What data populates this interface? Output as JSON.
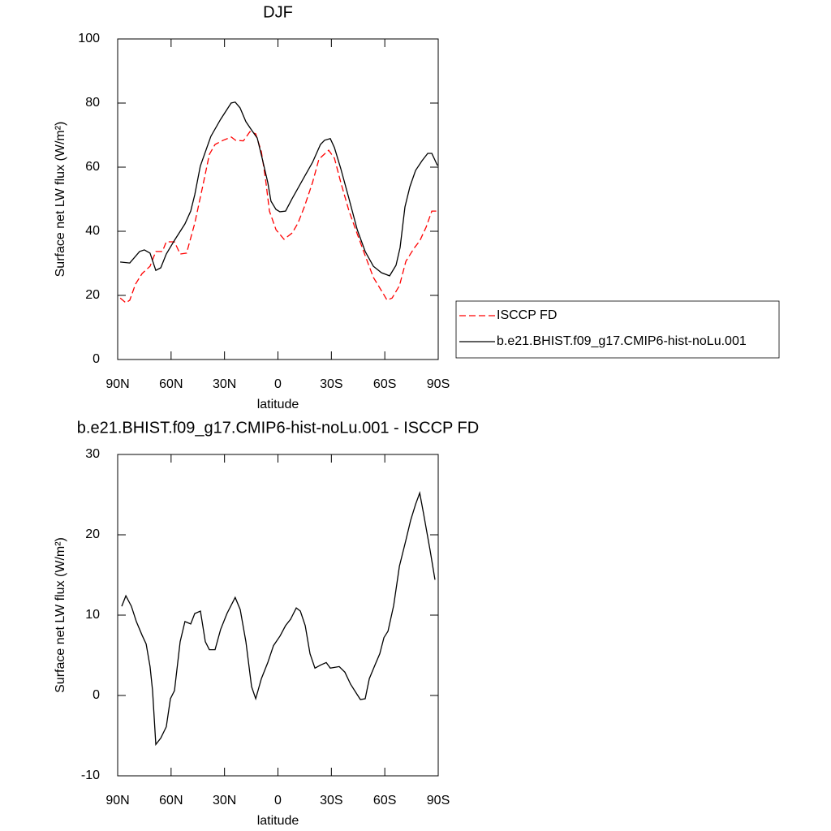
{
  "chart_data": [
    {
      "type": "line",
      "title": "DJF",
      "xlabel": "latitude",
      "ylabel": "Surface net LW flux (W/m²)",
      "xlim": [
        90,
        -90
      ],
      "xticks": [
        {
          "value": 90,
          "label": "90N"
        },
        {
          "value": 60,
          "label": "60N"
        },
        {
          "value": 30,
          "label": "30N"
        },
        0,
        {
          "value": -30,
          "label": "30S"
        },
        {
          "value": -60,
          "label": "60S"
        },
        {
          "value": -90,
          "label": "90S"
        }
      ],
      "ylim": [
        0,
        100
      ],
      "yticks": [
        0,
        20,
        40,
        60,
        80,
        100
      ],
      "series": [
        {
          "name": "ISCCP FD",
          "color": "#ff0000",
          "dashed": true,
          "x": [
            88.6,
            85.4,
            83.2,
            80,
            76.3,
            71.8,
            68.6,
            64.9,
            62.7,
            58.1,
            54.9,
            51.3,
            46.7,
            42.1,
            38.5,
            35.3,
            30.7,
            26.2,
            23.9,
            19.4,
            15.7,
            12.5,
            9.3,
            7,
            4.8,
            1.1,
            -3.4,
            -8,
            -11.2,
            -14.8,
            -19.4,
            -23,
            -28.5,
            -31.7,
            -35.3,
            -39.9,
            -44.5,
            -49,
            -53.6,
            -58.1,
            -61.3,
            -64.1,
            -68.2,
            -71.8,
            -76.4,
            -79.6,
            -83.2,
            -86.4,
            -89.6
          ],
          "values": [
            19.2,
            17.7,
            18.5,
            23.5,
            26.8,
            29.1,
            33.7,
            33.7,
            36.7,
            36.7,
            32.9,
            33.2,
            42.5,
            54.4,
            64,
            67.1,
            68.4,
            69.4,
            68.4,
            68.2,
            71.1,
            70.4,
            64.8,
            56.5,
            46.3,
            40.5,
            37.5,
            39.5,
            42.5,
            47.6,
            55.2,
            62.5,
            65.3,
            62.8,
            55.2,
            46.3,
            39.2,
            32.4,
            25.6,
            21.5,
            18.5,
            19.2,
            23,
            30.6,
            34.7,
            37,
            41.3,
            46.3,
            46.3
          ]
        },
        {
          "name": "b.e21.BHIST.f09_g17.CMIP6-hist-noLu.001",
          "color": "#000000",
          "dashed": false,
          "x": [
            88.6,
            83.2,
            77.7,
            75,
            71.8,
            68.6,
            65.8,
            62.7,
            58.1,
            52.2,
            49,
            46.7,
            43.6,
            37.7,
            32.2,
            26.3,
            24,
            21.3,
            18,
            14.8,
            11.6,
            8.9,
            5.7,
            3.9,
            1.1,
            -1.1,
            -4.3,
            -7.9,
            -11.2,
            -14.8,
            -19.4,
            -23.9,
            -26.2,
            -29.4,
            -31.7,
            -35.3,
            -39.9,
            -44.5,
            -49,
            -53.6,
            -58.1,
            -62.7,
            -66.3,
            -68.6,
            -71.3,
            -74.1,
            -77.3,
            -80.9,
            -84.1,
            -86.4,
            -89.6
          ],
          "values": [
            30.4,
            30.1,
            33.7,
            34.2,
            33.2,
            27.8,
            28.6,
            32.9,
            37.2,
            42.3,
            46.3,
            51.4,
            60.3,
            69.6,
            74.9,
            80,
            80.3,
            78.5,
            74.2,
            71.6,
            69.1,
            62.8,
            55.2,
            49.4,
            46.8,
            46.1,
            46.3,
            50.1,
            53.4,
            57,
            61.5,
            67.1,
            68.4,
            68.9,
            66.1,
            59.5,
            50.1,
            40.5,
            33.7,
            29.1,
            27.1,
            26.1,
            29.4,
            34.9,
            47.6,
            53.9,
            59,
            62,
            64.3,
            64.3,
            60.5
          ]
        }
      ]
    },
    {
      "type": "line",
      "title": "b.e21.BHIST.f09_g17.CMIP6-hist-noLu.001 - ISCCP FD",
      "xlabel": "latitude",
      "ylabel": "Surface net LW flux (W/m²)",
      "xlim": [
        90,
        -90
      ],
      "xticks": [
        {
          "value": 90,
          "label": "90N"
        },
        {
          "value": 60,
          "label": "60N"
        },
        {
          "value": 30,
          "label": "30N"
        },
        0,
        {
          "value": -30,
          "label": "30S"
        },
        {
          "value": -60,
          "label": "60S"
        },
        {
          "value": -90,
          "label": "90S"
        }
      ],
      "ylim": [
        -10,
        30
      ],
      "yticks": [
        -10,
        0,
        10,
        20,
        30
      ],
      "color": "#000000",
      "x": [
        87.7,
        85.4,
        82.3,
        79.5,
        76.3,
        74,
        71.8,
        70.4,
        68.6,
        65.8,
        62.7,
        60.4,
        58.1,
        54.9,
        52.2,
        49,
        46.7,
        43.5,
        40.8,
        38.5,
        35.3,
        32.2,
        28.6,
        24,
        21.2,
        18,
        14.8,
        12.5,
        9.3,
        5.7,
        2.5,
        -1.2,
        -4.3,
        -7.1,
        -10.3,
        -12.6,
        -15.3,
        -18,
        -20.8,
        -24,
        -27.1,
        -29.4,
        -34.4,
        -37.6,
        -40.8,
        -44.5,
        -46.3,
        -49,
        -51.3,
        -54.5,
        -57.2,
        -59.5,
        -61.8,
        -65,
        -68.2,
        -71.8,
        -74.5,
        -77.3,
        -79.6,
        -81.8,
        -85.5,
        -88.2
      ],
      "values": [
        11.1,
        12.4,
        11.1,
        9.2,
        7.5,
        6.4,
        3.6,
        0.6,
        -6.1,
        -5.3,
        -3.9,
        -0.4,
        0.6,
        6.7,
        9.2,
        8.9,
        10.2,
        10.5,
        6.7,
        5.7,
        5.7,
        8.2,
        10.2,
        12.2,
        10.7,
        6.7,
        1.1,
        -0.4,
        2.1,
        4.1,
        6.2,
        7.4,
        8.7,
        9.5,
        10.9,
        10.5,
        8.7,
        5.2,
        3.4,
        3.8,
        4.1,
        3.4,
        3.6,
        2.9,
        1.4,
        0.1,
        -0.5,
        -0.4,
        2.1,
        3.8,
        5.2,
        7.2,
        8,
        11.2,
        16.1,
        19.3,
        21.8,
        23.8,
        25.2,
        22.6,
        18,
        14.4
      ]
    }
  ]
}
